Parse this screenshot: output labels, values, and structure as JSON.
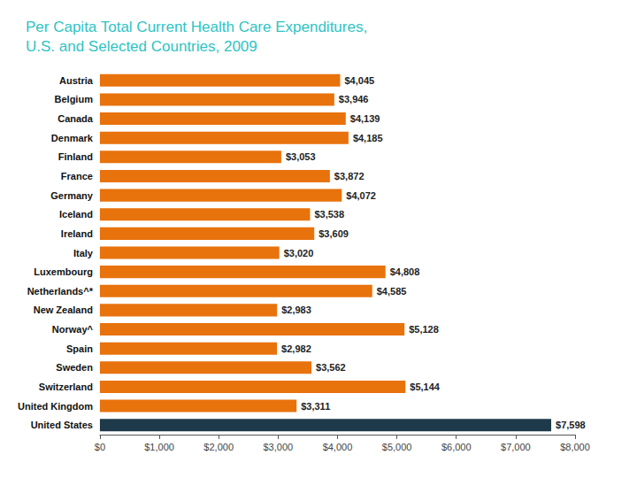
{
  "chart_data": {
    "type": "bar",
    "orientation": "horizontal",
    "title": "Per Capita Total Current Health Care Expenditures,\nU.S. and Selected Countries, 2009",
    "categories": [
      "Austria",
      "Belgium",
      "Canada",
      "Denmark",
      "Finland",
      "France",
      "Germany",
      "Iceland",
      "Ireland",
      "Italy",
      "Luxembourg",
      "Netherlands^*",
      "New Zealand",
      "Norway^",
      "Spain",
      "Sweden",
      "Switzerland",
      "United Kingdom",
      "United States"
    ],
    "values": [
      4045,
      3946,
      4139,
      4185,
      3053,
      3872,
      4072,
      3538,
      3609,
      3020,
      4808,
      4585,
      2983,
      5128,
      2982,
      3562,
      5144,
      3311,
      7598
    ],
    "value_labels": [
      "$4,045",
      "$3,946",
      "$4,139",
      "$4,185",
      "$3,053",
      "$3,872",
      "$4,072",
      "$3,538",
      "$3,609",
      "$3,020",
      "$4,808",
      "$4,585",
      "$2,983",
      "$5,128",
      "$2,982",
      "$3,562",
      "$5,144",
      "$3,311",
      "$7,598"
    ],
    "data_labels": true,
    "colors": [
      "#e8720c",
      "#e8720c",
      "#e8720c",
      "#e8720c",
      "#e8720c",
      "#e8720c",
      "#e8720c",
      "#e8720c",
      "#e8720c",
      "#e8720c",
      "#e8720c",
      "#e8720c",
      "#e8720c",
      "#e8720c",
      "#e8720c",
      "#e8720c",
      "#e8720c",
      "#e8720c",
      "#1e3a4a"
    ],
    "xlim": [
      0,
      8000
    ],
    "xticks": [
      {
        "value": 0,
        "label": "$0"
      },
      {
        "value": 1000,
        "label": "$1,000"
      },
      {
        "value": 2000,
        "label": "$2,000"
      },
      {
        "value": 3000,
        "label": "$3,000"
      },
      {
        "value": 4000,
        "label": "$4,000"
      },
      {
        "value": 5000,
        "label": "$5,000"
      },
      {
        "value": 6000,
        "label": "$6,000"
      },
      {
        "value": 7000,
        "label": "$7,000"
      },
      {
        "value": 8000,
        "label": "$8,000"
      }
    ],
    "grid": false
  }
}
